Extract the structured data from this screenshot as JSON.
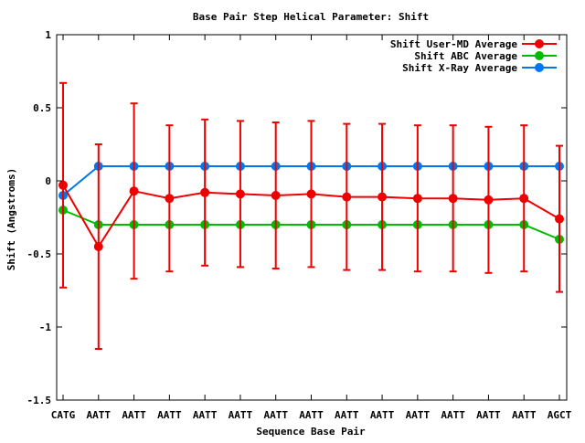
{
  "chart_data": {
    "type": "line",
    "title": "Base Pair Step Helical Parameter: Shift",
    "xlabel": "Sequence Base Pair",
    "ylabel": "Shift (Angstroms)",
    "ylim": [
      -1.5,
      1
    ],
    "yticks": [
      {
        "value": 1,
        "label": "1"
      },
      {
        "value": 0.5,
        "label": "0.5"
      },
      {
        "value": 0,
        "label": "0"
      },
      {
        "value": -0.5,
        "label": "-0.5"
      },
      {
        "value": -1,
        "label": "-1"
      },
      {
        "value": -1.5,
        "label": "-1.5"
      }
    ],
    "categories": [
      "CATG",
      "AATT",
      "AATT",
      "AATT",
      "AATT",
      "AATT",
      "AATT",
      "AATT",
      "AATT",
      "AATT",
      "AATT",
      "AATT",
      "AATT",
      "AATT",
      "AGCT"
    ],
    "legend_position": "top-right",
    "grid": false,
    "series": [
      {
        "name": "Shift User-MD Average",
        "color": "#ee0000",
        "values": [
          -0.03,
          -0.45,
          -0.07,
          -0.12,
          -0.08,
          -0.09,
          -0.1,
          -0.09,
          -0.11,
          -0.11,
          -0.12,
          -0.12,
          -0.13,
          -0.12,
          -0.26
        ],
        "error": [
          0.7,
          0.7,
          0.6,
          0.5,
          0.5,
          0.5,
          0.5,
          0.5,
          0.5,
          0.5,
          0.5,
          0.5,
          0.5,
          0.5,
          0.5
        ]
      },
      {
        "name": "Shift ABC Average",
        "color": "#00bb00",
        "values": [
          -0.2,
          -0.3,
          -0.3,
          -0.3,
          -0.3,
          -0.3,
          -0.3,
          -0.3,
          -0.3,
          -0.3,
          -0.3,
          -0.3,
          -0.3,
          -0.3,
          -0.4
        ]
      },
      {
        "name": "Shift X-Ray Average",
        "color": "#0077ee",
        "values": [
          -0.1,
          0.1,
          0.1,
          0.1,
          0.1,
          0.1,
          0.1,
          0.1,
          0.1,
          0.1,
          0.1,
          0.1,
          0.1,
          0.1,
          0.1
        ]
      }
    ]
  }
}
